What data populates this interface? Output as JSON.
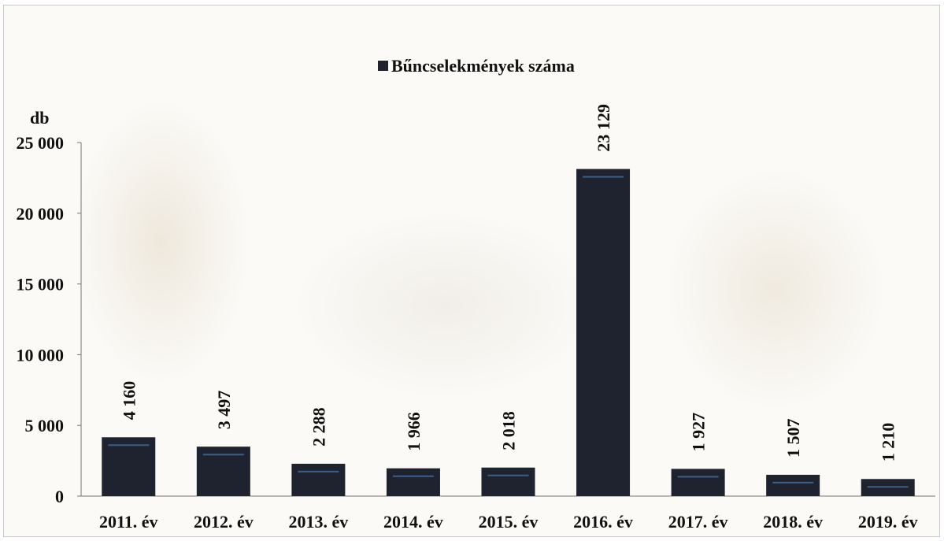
{
  "chart_data": {
    "type": "bar",
    "categories": [
      "2011. év",
      "2012. év",
      "2013. év",
      "2014. év",
      "2015. év",
      "2016. év",
      "2017. év",
      "2018. év",
      "2019. év"
    ],
    "series": [
      {
        "name": "Bűncselekmények száma",
        "values": [
          4160,
          3497,
          2288,
          1966,
          2018,
          23129,
          1927,
          1507,
          1210
        ],
        "labels": [
          "4 160",
          "3 497",
          "2 288",
          "1 966",
          "2 018",
          "23 129",
          "1 927",
          "1 507",
          "1 210"
        ],
        "color": "#1f2330"
      }
    ],
    "ylabel": "db",
    "ylim": [
      0,
      25000
    ],
    "yticks": [
      0,
      5000,
      10000,
      15000,
      20000,
      25000
    ],
    "ytick_labels": [
      "0",
      "5 000",
      "10 000",
      "15 000",
      "20 000",
      "25 000"
    ],
    "legend": "top-center",
    "grid": false
  }
}
